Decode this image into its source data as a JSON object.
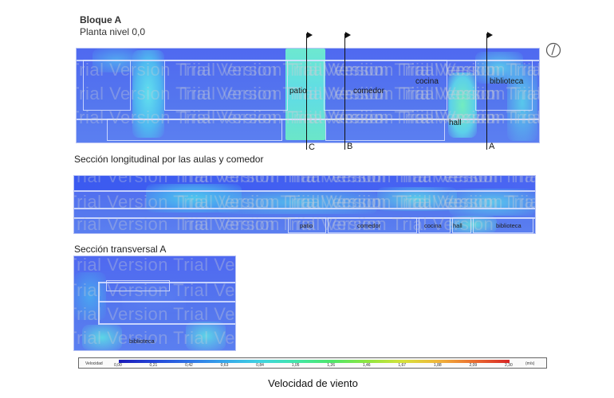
{
  "header": {
    "title": "Bloque A",
    "subtitle": "Planta nivel 0,0"
  },
  "plan": {
    "rooms": [
      "patio",
      "comedor",
      "cocina",
      "biblioteca",
      "hall"
    ],
    "cuts": [
      "C",
      "B",
      "A"
    ]
  },
  "longitudinal": {
    "title": "Sección longitudinal por las aulas y comedor",
    "labels": [
      "patio",
      "comedor",
      "cocina",
      "hall",
      "biblioteca"
    ]
  },
  "transversal": {
    "title": "Sección transversal A",
    "labels": [
      "biblioteca"
    ]
  },
  "legend": {
    "label": "Velocidad",
    "unit": "(m/s)",
    "ticks": [
      "0,00",
      "0,21",
      "0,42",
      "0,63",
      "0,84",
      "1,05",
      "1,26",
      "1,46",
      "1,67",
      "1,88",
      "2,09",
      "2,30"
    ],
    "colors": [
      "#1a1ab8",
      "#2447d8",
      "#2f74e6",
      "#36a8ea",
      "#3fd3e0",
      "#42e6a8",
      "#4ee66a",
      "#8fe640",
      "#d6e23a",
      "#f0b43a",
      "#ea6e30",
      "#d72626"
    ]
  },
  "watermark": "Trial Version",
  "caption": "Velocidad de viento"
}
